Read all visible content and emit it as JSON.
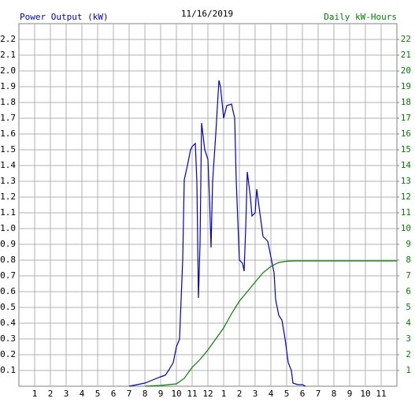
{
  "chart_data": {
    "type": "line",
    "title": "11/16/2019",
    "y_label": "Power Output (kW)",
    "y2_label": "Daily kW-Hours",
    "grid": true,
    "xlim": [
      0,
      24
    ],
    "xticks": [
      1,
      2,
      3,
      4,
      5,
      6,
      7,
      8,
      9,
      10,
      11,
      12,
      {
        "value": 13,
        "label": "1"
      },
      {
        "value": 14,
        "label": "2"
      },
      {
        "value": 15,
        "label": "3"
      },
      {
        "value": 16,
        "label": "4"
      },
      {
        "value": 17,
        "label": "5"
      },
      {
        "value": 18,
        "label": "6"
      },
      {
        "value": 19,
        "label": "7"
      },
      {
        "value": 20,
        "label": "8"
      },
      {
        "value": 21,
        "label": "9"
      },
      {
        "value": 22,
        "label": "10"
      },
      {
        "value": 23,
        "label": "11"
      }
    ],
    "ylim": [
      0,
      2.3
    ],
    "yticks": [
      0.1,
      0.2,
      0.3,
      0.4,
      0.5,
      0.6,
      0.7,
      0.8,
      0.9,
      {
        "value": 1,
        "label": "1.0"
      },
      1.1,
      1.2,
      1.3,
      1.4,
      1.5,
      1.6,
      1.7,
      1.8,
      1.9,
      {
        "value": 2,
        "label": "2.0"
      },
      2.1,
      2.2
    ],
    "y2lim": [
      0,
      23
    ],
    "y2ticks": [
      1,
      2,
      3,
      4,
      5,
      6,
      7,
      8,
      9,
      10,
      11,
      12,
      13,
      14,
      15,
      16,
      17,
      18,
      19,
      20,
      21,
      22
    ],
    "series": [
      {
        "name": "Power Output (kW)",
        "color": "#0000c0",
        "x": [
          7.0,
          7.5,
          8.0,
          8.5,
          9.0,
          9.3,
          9.5,
          9.8,
          10.0,
          10.2,
          10.4,
          10.5,
          10.7,
          10.9,
          11.0,
          11.2,
          11.3,
          11.4,
          11.5,
          11.6,
          11.8,
          12.0,
          12.1,
          12.2,
          12.3,
          12.5,
          12.7,
          12.8,
          13.0,
          13.2,
          13.5,
          13.7,
          13.8,
          14.0,
          14.2,
          14.3,
          14.4,
          14.5,
          14.7,
          14.8,
          15.0,
          15.1,
          15.3,
          15.5,
          15.8,
          16.0,
          16.2,
          16.3,
          16.5,
          16.7,
          16.9,
          17.1,
          17.3,
          17.4,
          17.7,
          18.0,
          18.2
        ],
        "values": [
          0,
          0.01,
          0.02,
          0.04,
          0.06,
          0.07,
          0.1,
          0.15,
          0.25,
          0.3,
          0.8,
          1.31,
          1.4,
          1.5,
          1.52,
          1.54,
          1.3,
          0.56,
          0.9,
          1.67,
          1.5,
          1.44,
          1.2,
          0.88,
          1.3,
          1.6,
          1.94,
          1.9,
          1.7,
          1.78,
          1.79,
          1.7,
          1.3,
          0.8,
          0.78,
          0.73,
          1.0,
          1.36,
          1.2,
          1.08,
          1.1,
          1.25,
          1.1,
          0.95,
          0.92,
          0.82,
          0.72,
          0.55,
          0.45,
          0.42,
          0.3,
          0.15,
          0.1,
          0.02,
          0.01,
          0.01,
          0
        ]
      },
      {
        "name": "Daily kW-Hours",
        "color": "#008000",
        "axis": "y2",
        "x": [
          8.0,
          9.0,
          10.0,
          10.5,
          11.0,
          11.5,
          12.0,
          12.5,
          13.0,
          13.5,
          14.0,
          14.5,
          15.0,
          15.5,
          16.0,
          16.5,
          17.0,
          17.5,
          24
        ],
        "values": [
          0,
          0.05,
          0.15,
          0.5,
          1.2,
          1.7,
          2.3,
          3.0,
          3.7,
          4.6,
          5.4,
          6.0,
          6.6,
          7.2,
          7.6,
          7.85,
          7.93,
          7.95,
          7.95
        ]
      }
    ]
  }
}
